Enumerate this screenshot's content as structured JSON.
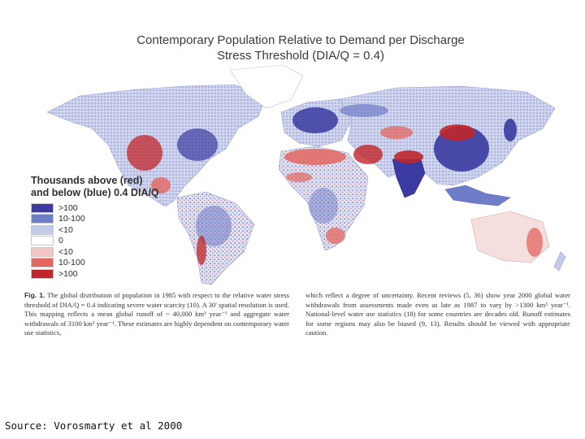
{
  "map": {
    "title_line1": "Contemporary Population Relative to Demand per Discharge",
    "title_line2": "Stress Threshold (DIA/Q = 0.4)",
    "legend": {
      "title_line1": "Thousands above (red)",
      "title_line2": "and below (blue) 0.4 DIA/Q",
      "items": [
        {
          "label": ">100",
          "color": "#3a3aa0"
        },
        {
          "label": "10-100",
          "color": "#6f7cc8"
        },
        {
          "label": "<10",
          "color": "#c4cbe8"
        },
        {
          "label": "0",
          "color": "#ffffff"
        },
        {
          "label": "<10",
          "color": "#f2c6c2"
        },
        {
          "label": "10-100",
          "color": "#e46660"
        },
        {
          "label": ">100",
          "color": "#c0262a"
        }
      ]
    }
  },
  "caption": {
    "fig_label": "Fig. 1.",
    "column1": "The global distribution of population in 1985 with respect to the relative water stress threshold of DIA/Q = 0.4 indicating severe water scarcity (10). A 30' spatial resolution is used. This mapping reflects a mean global runoff of ~ 40,000 km³ year⁻¹ and aggregate water withdrawals of 3100 km³ year⁻¹. These estimates are highly dependent on contemporary water use statistics,",
    "column2": "which reflect a degree of uncertainty. Recent reviews (5, 36) show year 2000 global water withdrawals from assessments made even as late as 1987 to vary by >1300 km³ year⁻¹. National-level water use statistics (18) for some countries are decades old. Runoff estimates for some regions may also be biased (9, 13). Results should be viewed with appropriate caution."
  },
  "source": "Source: Vorosmarty et al 2000"
}
